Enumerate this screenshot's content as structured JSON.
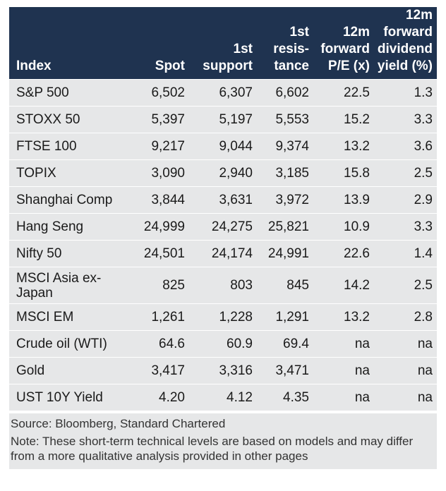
{
  "table": {
    "headers": {
      "index": "Index",
      "spot": "Spot",
      "support": [
        "1st",
        "support"
      ],
      "resistance": [
        "1st",
        "resis-",
        "tance"
      ],
      "pe": [
        "12m",
        "forward",
        "P/E (x)"
      ],
      "dividend": [
        "12m",
        "forward",
        "dividend",
        "yield (%)"
      ]
    },
    "rows": [
      {
        "index": "S&P 500",
        "spot": "6,502",
        "support": "6,307",
        "resistance": "6,602",
        "pe": "22.5",
        "dividend": "1.3"
      },
      {
        "index": "STOXX 50",
        "spot": "5,397",
        "support": "5,197",
        "resistance": "5,553",
        "pe": "15.2",
        "dividend": "3.3"
      },
      {
        "index": "FTSE 100",
        "spot": "9,217",
        "support": "9,044",
        "resistance": "9,374",
        "pe": "13.2",
        "dividend": "3.6"
      },
      {
        "index": "TOPIX",
        "spot": "3,090",
        "support": "2,940",
        "resistance": "3,185",
        "pe": "15.8",
        "dividend": "2.5"
      },
      {
        "index": "Shanghai Comp",
        "spot": "3,844",
        "support": "3,631",
        "resistance": "3,972",
        "pe": "13.9",
        "dividend": "2.9"
      },
      {
        "index": "Hang Seng",
        "spot": "24,999",
        "support": "24,275",
        "resistance": "25,821",
        "pe": "10.9",
        "dividend": "3.3"
      },
      {
        "index": "Nifty 50",
        "spot": "24,501",
        "support": "24,174",
        "resistance": "24,991",
        "pe": "22.6",
        "dividend": "1.4"
      },
      {
        "index": "MSCI Asia ex-Japan",
        "spot": "825",
        "support": "803",
        "resistance": "845",
        "pe": "14.2",
        "dividend": "2.5"
      },
      {
        "index": "MSCI EM",
        "spot": "1,261",
        "support": "1,228",
        "resistance": "1,291",
        "pe": "13.2",
        "dividend": "2.8"
      },
      {
        "index": "Crude oil (WTI)",
        "spot": "64.6",
        "support": "60.9",
        "resistance": "69.4",
        "pe": "na",
        "dividend": "na"
      },
      {
        "index": "Gold",
        "spot": "3,417",
        "support": "3,316",
        "resistance": "3,471",
        "pe": "na",
        "dividend": "na"
      },
      {
        "index": "UST 10Y Yield",
        "spot": "4.20",
        "support": "4.12",
        "resistance": "4.35",
        "pe": "na",
        "dividend": "na"
      }
    ]
  },
  "footnotes": {
    "source": "Source: Bloomberg, Standard Chartered",
    "note": "Note: These short-term technical levels are based on models and may differ from a more qualitative analysis provided in other pages"
  },
  "colors": {
    "header_bg": "#1f3350",
    "row_bg": "#e6e7e8"
  }
}
